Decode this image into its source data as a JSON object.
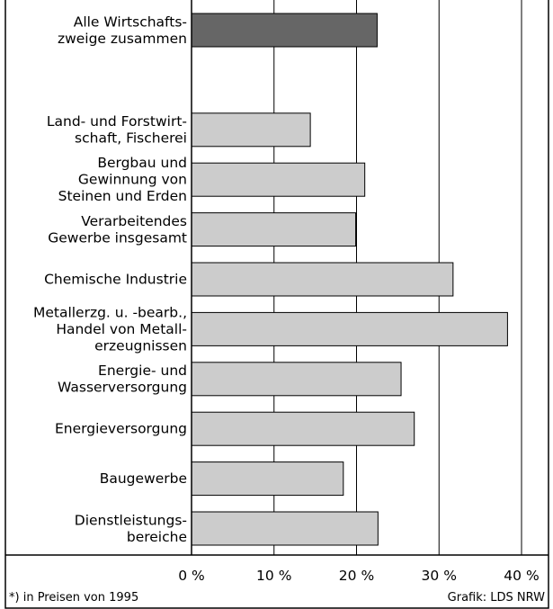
{
  "chart_data": {
    "type": "barh",
    "categories": [
      "Alle Wirtschafts-\nzweige zusammen",
      "Land- und Forstwirt-\nschaft, Fischerei",
      "Bergbau und\nGewinnung von\nSteinen und Erden",
      "Verarbeitendes\nGewerbe insgesamt",
      "Chemische Industrie",
      "Metallerzg. u. -bearb.,\nHandel von Metall-\nerzeugnissen",
      "Energie- und\nWasserversorgung",
      "Energieversorgung",
      "Baugewerbe",
      "Dienstleistungs-\nbereiche"
    ],
    "values": [
      22.5,
      14.4,
      21.0,
      19.9,
      31.7,
      38.3,
      25.4,
      27.0,
      18.4,
      22.6
    ],
    "colors": [
      "#666666",
      "#cccccc",
      "#cccccc",
      "#cccccc",
      "#cccccc",
      "#cccccc",
      "#cccccc",
      "#cccccc",
      "#cccccc",
      "#cccccc"
    ],
    "xlim": [
      0,
      40
    ],
    "xticks": [
      {
        "value": 0,
        "label": "0 %"
      },
      {
        "value": 10,
        "label": "10 %"
      },
      {
        "value": 20,
        "label": "20 %"
      },
      {
        "value": 30,
        "label": "30 %"
      },
      {
        "value": 40,
        "label": "40 %"
      }
    ],
    "grid": true,
    "footnote": "*) in Preisen von 1995",
    "source": "Grafik: LDS NRW"
  }
}
